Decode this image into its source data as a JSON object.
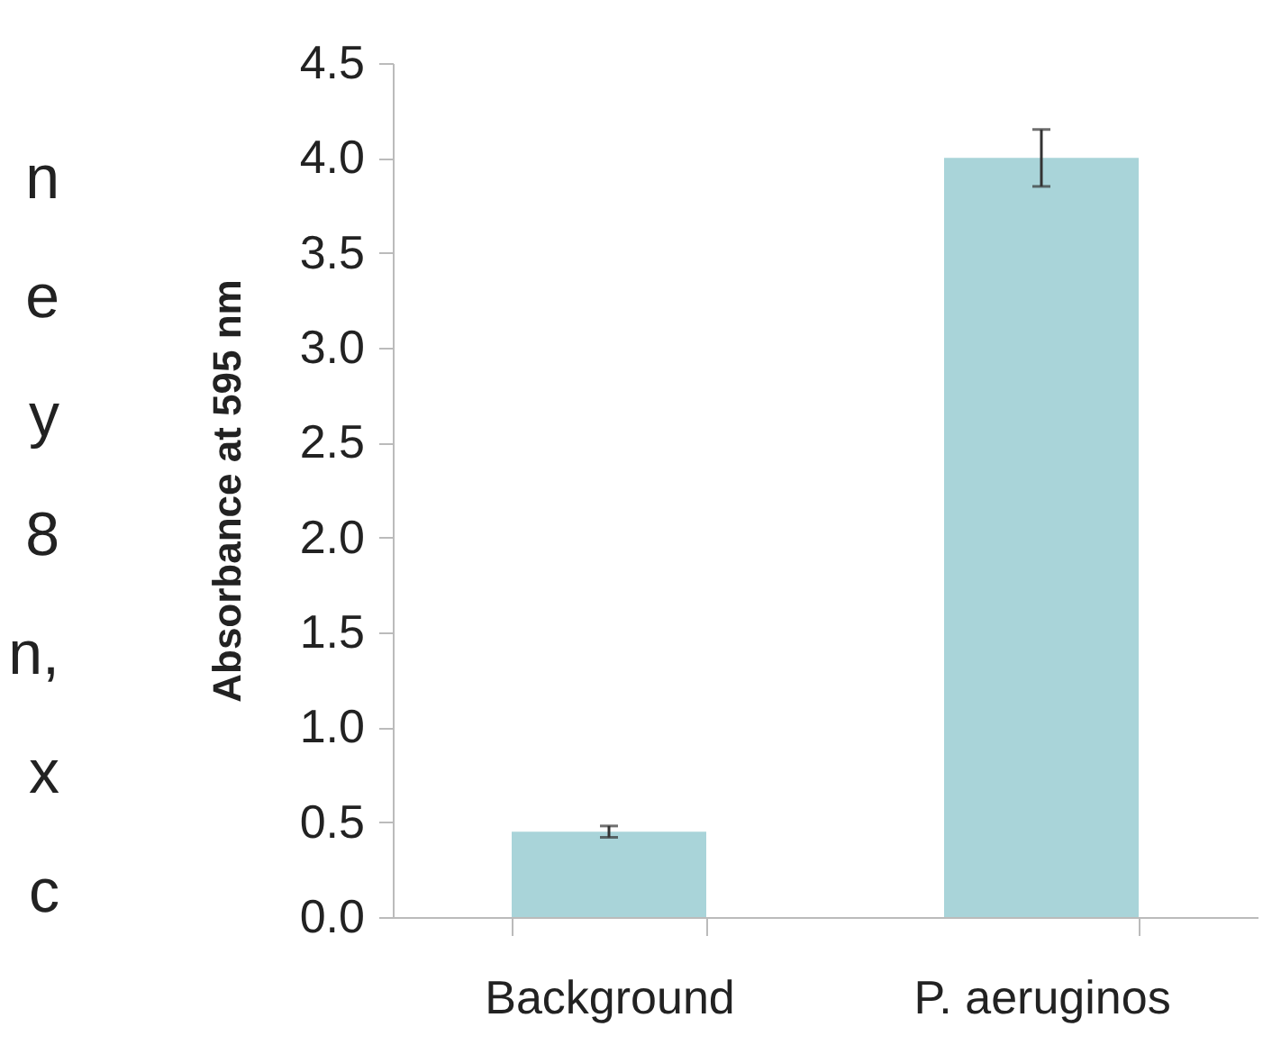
{
  "chart_data": {
    "type": "bar",
    "ylabel": "Absorbance at 595 nm",
    "categories": [
      "Background",
      "P. aeruginos"
    ],
    "values": [
      0.45,
      4.0
    ],
    "errors": [
      0.03,
      0.15
    ],
    "color": "#a9d4d9",
    "ylim": [
      0,
      4.5
    ],
    "yticks": [
      {
        "value": 0,
        "label": "0.0"
      },
      0.5,
      {
        "value": 1,
        "label": "1.0"
      },
      1.5,
      {
        "value": 2,
        "label": "2.0"
      },
      2.5,
      {
        "value": 3,
        "label": "3.0"
      },
      3.5,
      {
        "value": 4,
        "label": "4.0"
      },
      4.5
    ],
    "grid": false,
    "annotations": [
      "n",
      "e",
      "y",
      "8",
      "n,",
      "x",
      "c"
    ]
  }
}
